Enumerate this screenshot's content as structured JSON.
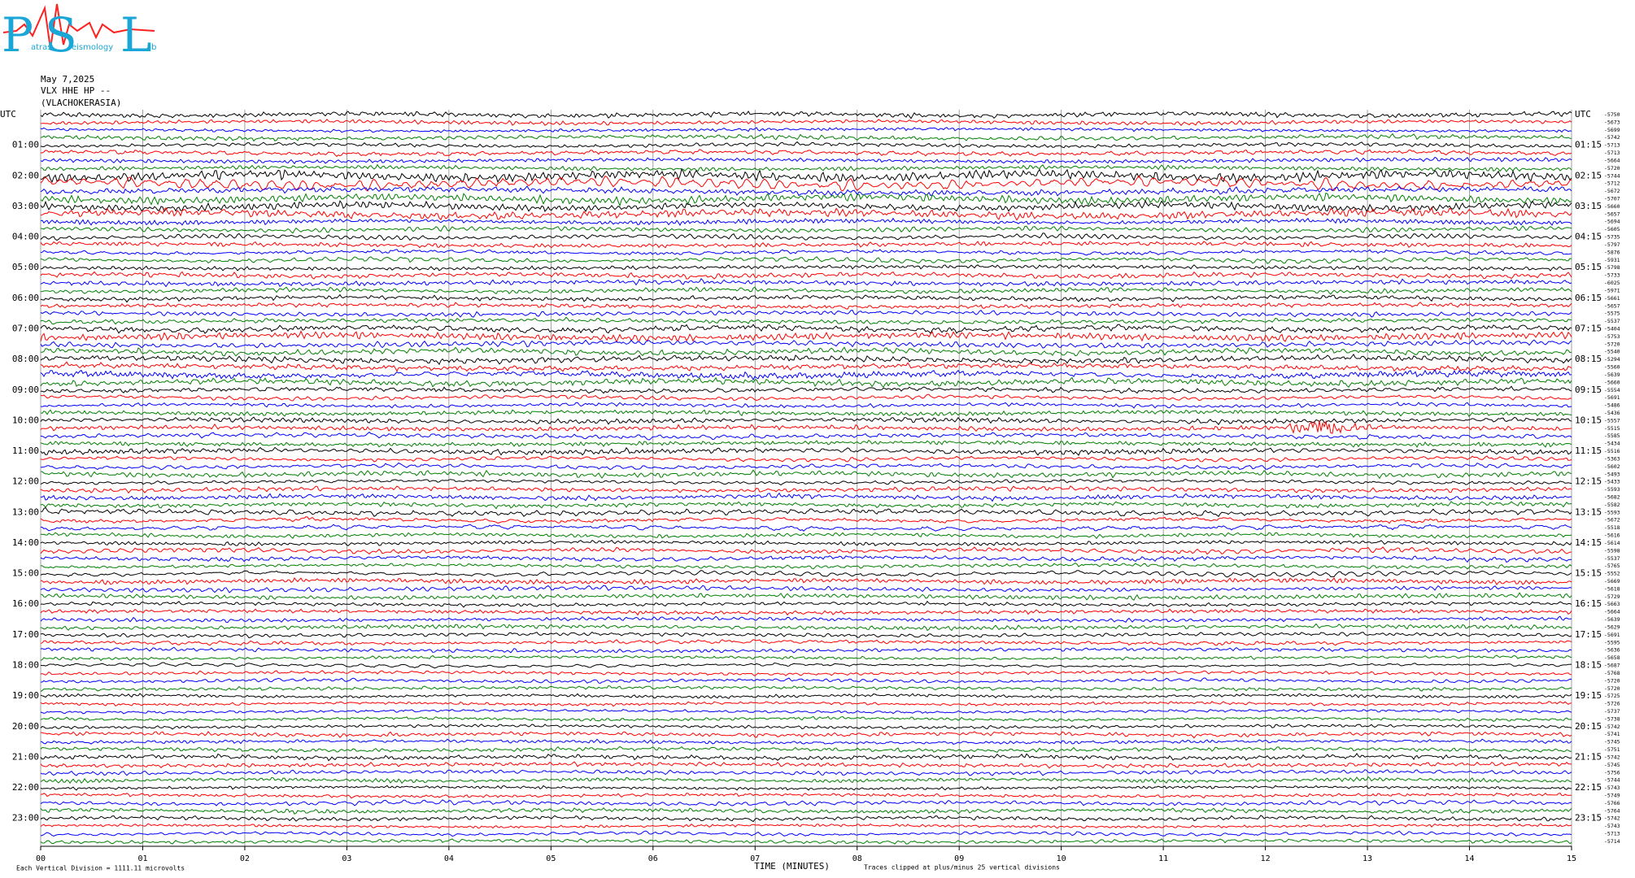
{
  "logo": {
    "letters": [
      "P",
      "S",
      "L"
    ],
    "words": [
      "atras",
      "eismology",
      "ab"
    ]
  },
  "header": {
    "date": "May 7,2025",
    "station": "VLX HHE HP --",
    "site": "(VLACHOKERASIA)"
  },
  "left_labels": [
    "UTC",
    "01:00",
    "02:00",
    "03:00",
    "04:00",
    "05:00",
    "06:00",
    "07:00",
    "08:00",
    "09:00",
    "10:00",
    "11:00",
    "12:00",
    "13:00",
    "14:00",
    "15:00",
    "16:00",
    "17:00",
    "18:00",
    "19:00",
    "20:00",
    "21:00",
    "22:00",
    "23:00"
  ],
  "right_labels": [
    "UTC",
    "01:15",
    "02:15",
    "03:15",
    "04:15",
    "05:15",
    "06:15",
    "07:15",
    "08:15",
    "09:15",
    "10:15",
    "11:15",
    "12:15",
    "13:15",
    "14:15",
    "15:15",
    "16:15",
    "17:15",
    "18:15",
    "19:15",
    "20:15",
    "21:15",
    "22:15",
    "23:15"
  ],
  "trace_offsets": [
    "-5750",
    "-5673",
    "-5699",
    "-5742",
    "-5713",
    "-5713",
    "-5664",
    "-5720",
    "-5744",
    "-5712",
    "-5672",
    "-5707",
    "-5660",
    "-5657",
    "-5694",
    "-5605",
    "-5735",
    "-5797",
    "-5876",
    "-5931",
    "-5798",
    "-5733",
    "-6025",
    "-5971",
    "-5661",
    "-5657",
    "-5575",
    "-5537",
    "-5404",
    "-5753",
    "-5720",
    "-5540",
    "-5294",
    "-5560",
    "-5639",
    "-5660",
    "-5554",
    "-5691",
    "-5486",
    "-5436",
    "-5557",
    "-5515",
    "-5585",
    "-5434",
    "-5516",
    "-5363",
    "-5602",
    "-5493",
    "-5433",
    "-5593",
    "-5682",
    "-5582",
    "-5593",
    "-5672",
    "-5518",
    "-5616",
    "-5614",
    "-5598",
    "-5537",
    "-5765",
    "-5552",
    "-5669",
    "-5618",
    "-5729",
    "-5663",
    "-5664",
    "-5639",
    "-5629",
    "-5691",
    "-5595",
    "-5636",
    "-5658",
    "-5687",
    "-5768",
    "-5720",
    "-5720",
    "-5725",
    "-5726",
    "-5737",
    "-5738",
    "-5742",
    "-5741",
    "-5745",
    "-5751",
    "-5742",
    "-5745",
    "-5756",
    "-5744",
    "-5743",
    "-5749",
    "-5766",
    "-5764",
    "-5742",
    "-5743",
    "-5713",
    "-5714"
  ],
  "x_labels": [
    "00",
    "01",
    "02",
    "03",
    "04",
    "05",
    "06",
    "07",
    "08",
    "09",
    "10",
    "11",
    "12",
    "13",
    "14",
    "15"
  ],
  "footer": {
    "scale": "Each Vertical Division = 1111.11 microvolts",
    "axis_title": "TIME (MINUTES)",
    "clip_note": "Traces clipped at plus/minus 25 vertical divisions"
  },
  "trace_colors": [
    "#000000",
    "#ff0000",
    "#0000ff",
    "#008000"
  ]
}
